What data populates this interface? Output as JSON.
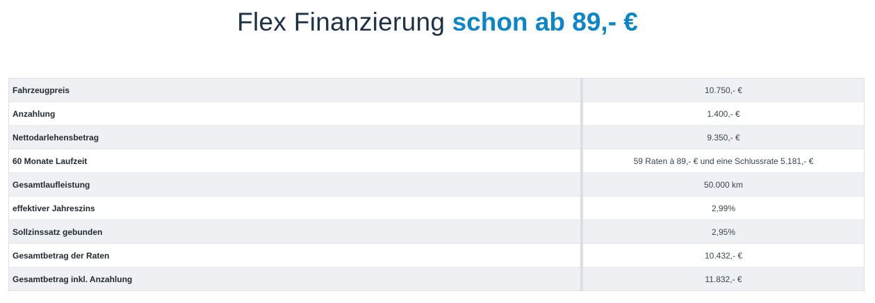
{
  "header": {
    "title_light": "Flex Finanzierung",
    "title_bold": "schon ab 89,- €"
  },
  "table": {
    "rows": [
      {
        "label": "Fahrzeugpreis",
        "value": "10.750,- €"
      },
      {
        "label": "Anzahlung",
        "value": "1.400,- €"
      },
      {
        "label": "Nettodarlehensbetrag",
        "value": "9.350,- €"
      },
      {
        "label": "60 Monate Laufzeit",
        "value": "59 Raten à 89,- € und eine Schlussrate 5.181,- €"
      },
      {
        "label": "Gesamtlaufleistung",
        "value": "50.000 km"
      },
      {
        "label": "effektiver Jahreszins",
        "value": "2,99%"
      },
      {
        "label": "Sollzinssatz gebunden",
        "value": "2,95%"
      },
      {
        "label": "Gesamtbetrag der Raten",
        "value": "10.432,- €"
      },
      {
        "label": "Gesamtbetrag inkl. Anzahlung",
        "value": "11.832,- €"
      }
    ]
  },
  "colors": {
    "accent": "#0d86c9",
    "heading": "#1d3146",
    "row_alt": "#eef0f3"
  }
}
